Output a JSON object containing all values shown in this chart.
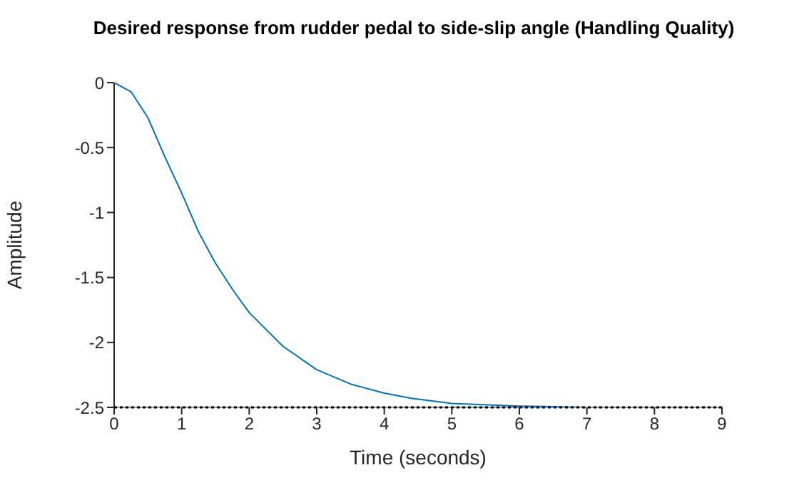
{
  "chart_data": {
    "type": "line",
    "title": "Desired response from rudder pedal to side-slip angle (Handling Quality)",
    "xlabel": "Time (seconds)",
    "ylabel": "Amplitude",
    "x": [
      0,
      0.25,
      0.5,
      0.75,
      1,
      1.25,
      1.5,
      1.75,
      2,
      2.5,
      3,
      3.5,
      4,
      4.4,
      5,
      6,
      7,
      8,
      9
    ],
    "series": [
      {
        "color": "#0072bd",
        "values": [
          0,
          -0.07,
          -0.27,
          -0.57,
          -0.85,
          -1.15,
          -1.39,
          -1.59,
          -1.77,
          -2.03,
          -2.21,
          -2.32,
          -2.39,
          -2.43,
          -2.47,
          -2.49,
          -2.5,
          -2.5,
          -2.5
        ]
      }
    ],
    "xlim": [
      0,
      9
    ],
    "xticks": [
      0,
      1,
      2,
      3,
      4,
      5,
      6,
      7,
      8,
      9
    ],
    "ylim": [
      -2.5,
      0
    ],
    "yticks": [
      -2.5,
      -2,
      -1.5,
      -1,
      -0.5,
      0
    ],
    "ref_lines": [
      {
        "axis": "y",
        "value": -2.5,
        "color": "#000000",
        "line_style": "dotted"
      }
    ],
    "grid": false,
    "legend": false,
    "marker": "none",
    "line_style": "solid"
  }
}
